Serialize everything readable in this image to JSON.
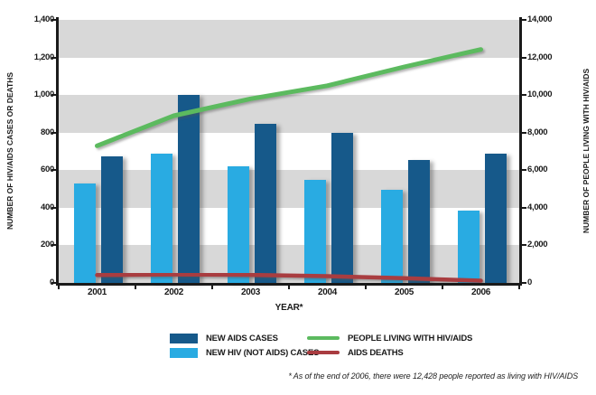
{
  "chart_data": {
    "type": "bar+line",
    "categories": [
      "2001",
      "2002",
      "2003",
      "2004",
      "2005",
      "2006"
    ],
    "series": [
      {
        "name": "NEW AIDS CASES",
        "type": "bar",
        "axis": "left",
        "color": "#16598A",
        "values": [
          675,
          1000,
          845,
          800,
          655,
          690
        ]
      },
      {
        "name": "NEW HIV (NOT AIDS) CASES",
        "type": "bar",
        "axis": "left",
        "color": "#29ABE2",
        "values": [
          530,
          690,
          620,
          550,
          495,
          385
        ]
      },
      {
        "name": "PEOPLE LIVING WITH HIV/AIDS",
        "type": "line",
        "axis": "right",
        "color": "#5CBA5F",
        "values": [
          7300,
          8900,
          9800,
          10500,
          11500,
          12428
        ]
      },
      {
        "name": "AIDS DEATHS",
        "type": "line",
        "axis": "left",
        "color": "#A93C40",
        "values": [
          42,
          45,
          43,
          36,
          25,
          12
        ]
      }
    ],
    "left_axis": {
      "label": "NUMBER OF HIV/AIDS CASES OR DEATHS",
      "min": 0,
      "max": 1400,
      "step": 200
    },
    "right_axis": {
      "label": "NUMBER OF PEOPLE LIVING WITH HIV/AIDS",
      "min": 0,
      "max": 14000,
      "step": 2000
    },
    "xlabel": "YEAR*",
    "grid_bands": "alternating gray/white horizontal bands",
    "band_gray": "#D8D8D8",
    "legend_position": "bottom"
  },
  "footnote": "* As of the end of 2006, there were 12,428 people reported as living with HIV/AIDS"
}
